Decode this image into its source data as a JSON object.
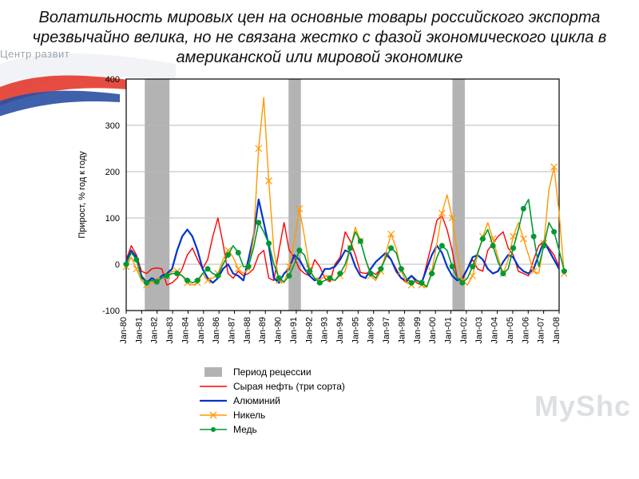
{
  "title": "Волатильность мировых цен на основные товары российского экспорта чрезвычайно велика, но не связана жестко с фазой экономического цикла в американской или мировой экономике",
  "watermark_left": "Центр развит",
  "watermark_right": "MyShc",
  "chart": {
    "type": "line",
    "background_color": "#ffffff",
    "plot_border_color": "#000000",
    "grid_color": "#b8b8b8",
    "grid_on": true,
    "ylabel": "Прирост, % год к году",
    "ylabel_fontsize": 11,
    "axis_font_size": 11,
    "tick_font_size": 11,
    "ylim": [
      -100,
      400
    ],
    "yticks": [
      -100,
      0,
      100,
      200,
      300,
      400
    ],
    "x_categories": [
      "Jan-80",
      "Jan-81",
      "Jan-82",
      "Jan-83",
      "Jan-84",
      "Jan-85",
      "Jan-86",
      "Jan-87",
      "Jan-88",
      "Jan-89",
      "Jan-90",
      "Jan-91",
      "Jan-92",
      "Jan-93",
      "Jan-94",
      "Jan-95",
      "Jan-96",
      "Jan-97",
      "Jan-98",
      "Jan-99",
      "Jan-00",
      "Jan-01",
      "Jan-02",
      "Jan-03",
      "Jan-04",
      "Jan-05",
      "Jan-06",
      "Jan-07",
      "Jan-08"
    ],
    "recession_bands": [
      {
        "from": 1.2,
        "to": 2.8
      },
      {
        "from": 10.5,
        "to": 11.3
      },
      {
        "from": 21.1,
        "to": 21.9
      }
    ],
    "recession_color": "#b3b3b3",
    "series": [
      {
        "key": "oil",
        "label": "Сырая нефть (три сорта)",
        "color": "#ff0000",
        "line_width": 1.4,
        "marker": "none",
        "data": [
          10,
          40,
          20,
          -15,
          -20,
          -10,
          -8,
          -10,
          -45,
          -40,
          -30,
          -10,
          20,
          35,
          10,
          -10,
          10,
          60,
          100,
          45,
          -20,
          -30,
          -15,
          -25,
          -20,
          -10,
          20,
          30,
          -30,
          -35,
          30,
          90,
          30,
          15,
          -10,
          -20,
          -25,
          10,
          -5,
          -30,
          -38,
          0,
          15,
          70,
          50,
          20,
          -18,
          -20,
          -15,
          -22,
          -10,
          20,
          10,
          -10,
          -30,
          -40,
          -25,
          -40,
          -45,
          0,
          45,
          95,
          105,
          75,
          30,
          -30,
          -35,
          -10,
          10,
          -10,
          -15,
          30,
          45,
          60,
          70,
          35,
          20,
          -15,
          -20,
          -25,
          10,
          40,
          50,
          35,
          20,
          -5
        ]
      },
      {
        "key": "aluminium",
        "label": "Алюминий",
        "color": "#0033cc",
        "line_width": 2.2,
        "marker": "none",
        "data": [
          5,
          30,
          15,
          -25,
          -40,
          -30,
          -35,
          -25,
          -20,
          -10,
          30,
          60,
          75,
          60,
          30,
          -10,
          -30,
          -40,
          -30,
          -10,
          0,
          -20,
          -25,
          -35,
          10,
          60,
          140,
          90,
          40,
          -30,
          -40,
          -20,
          -10,
          20,
          10,
          -10,
          -25,
          -35,
          -30,
          -10,
          -10,
          -5,
          10,
          30,
          25,
          -5,
          -25,
          -30,
          -10,
          5,
          15,
          25,
          10,
          -15,
          -30,
          -35,
          -25,
          -35,
          -40,
          -10,
          20,
          40,
          25,
          -5,
          -25,
          -35,
          -30,
          -10,
          15,
          20,
          10,
          -10,
          -20,
          -15,
          5,
          20,
          15,
          -5,
          -15,
          -20,
          -10,
          20,
          50,
          30,
          10,
          -10
        ]
      },
      {
        "key": "nickel",
        "label": "Никель",
        "color": "#ff9900",
        "line_width": 1.4,
        "marker": "x",
        "marker_size": 4,
        "data": [
          -5,
          15,
          -10,
          -35,
          -45,
          -40,
          -35,
          -30,
          -25,
          -15,
          -15,
          -25,
          -40,
          -45,
          -40,
          -20,
          -35,
          -30,
          -20,
          10,
          30,
          15,
          -10,
          -20,
          -10,
          55,
          250,
          360,
          180,
          30,
          -35,
          -40,
          -5,
          50,
          120,
          60,
          -10,
          -30,
          -35,
          -25,
          -30,
          -35,
          -25,
          -15,
          35,
          80,
          50,
          10,
          -25,
          -35,
          -15,
          25,
          65,
          35,
          -15,
          -40,
          -45,
          -35,
          -45,
          -50,
          -15,
          45,
          110,
          150,
          100,
          25,
          -35,
          -45,
          -25,
          20,
          60,
          90,
          55,
          15,
          -20,
          10,
          60,
          90,
          55,
          20,
          -15,
          -20,
          45,
          160,
          210,
          110,
          -20
        ]
      },
      {
        "key": "copper",
        "label": "Медь",
        "color": "#009933",
        "line_width": 1.6,
        "marker": "circle",
        "marker_size": 3,
        "data": [
          0,
          25,
          10,
          -30,
          -40,
          -35,
          -38,
          -30,
          -25,
          -20,
          -20,
          -25,
          -35,
          -40,
          -35,
          -20,
          -10,
          -20,
          -25,
          0,
          20,
          40,
          25,
          -5,
          -5,
          35,
          90,
          70,
          45,
          0,
          -30,
          -38,
          -25,
          0,
          30,
          20,
          -15,
          -30,
          -40,
          -35,
          -30,
          -35,
          -20,
          0,
          35,
          70,
          50,
          10,
          -20,
          -30,
          -10,
          15,
          35,
          25,
          -10,
          -30,
          -40,
          -35,
          -40,
          -48,
          -20,
          15,
          40,
          30,
          -5,
          -30,
          -40,
          -30,
          -5,
          25,
          55,
          75,
          40,
          5,
          -20,
          -10,
          35,
          75,
          120,
          140,
          60,
          -5,
          40,
          90,
          70,
          30,
          -15
        ]
      }
    ],
    "legend": [
      {
        "kind": "band",
        "label": "Период рецессии",
        "color": "#b3b3b3"
      },
      {
        "kind": "line",
        "label": "Сырая нефть (три сорта)",
        "color": "#ff0000",
        "marker": "none",
        "line_width": 1.4
      },
      {
        "kind": "line",
        "label": "Алюминий",
        "color": "#0033cc",
        "marker": "none",
        "line_width": 2.2
      },
      {
        "kind": "line",
        "label": "Никель",
        "color": "#ff9900",
        "marker": "x",
        "line_width": 1.4
      },
      {
        "kind": "line",
        "label": "Медь",
        "color": "#009933",
        "marker": "circle",
        "line_width": 1.6
      }
    ]
  }
}
